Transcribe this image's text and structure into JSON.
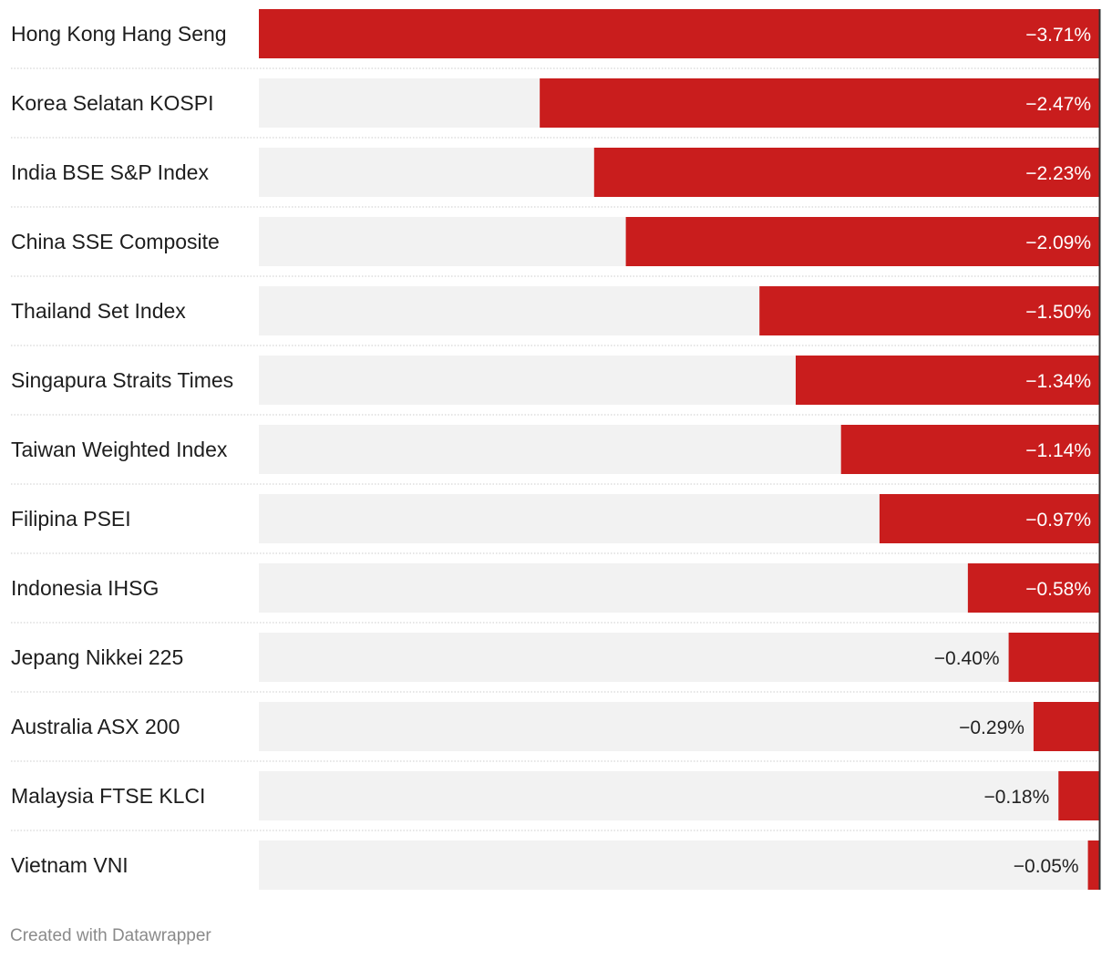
{
  "chart_data": {
    "type": "bar",
    "orientation": "horizontal",
    "categories": [
      "Hong Kong Hang Seng",
      "Korea Selatan KOSPI",
      "India BSE S&P Index",
      "China SSE Composite",
      "Thailand Set Index",
      "Singapura Straits Times",
      "Taiwan Weighted Index",
      "Filipina PSEI",
      "Indonesia IHSG",
      "Jepang Nikkei 225",
      "Australia ASX 200",
      "Malaysia FTSE KLCI",
      "Vietnam VNI"
    ],
    "values": [
      -3.71,
      -2.47,
      -2.23,
      -2.09,
      -1.5,
      -1.34,
      -1.14,
      -0.97,
      -0.58,
      -0.4,
      -0.29,
      -0.18,
      -0.05
    ],
    "value_labels": [
      "−3.71%",
      "−2.47%",
      "−2.23%",
      "−2.09%",
      "−1.50%",
      "−1.34%",
      "−1.14%",
      "−0.97%",
      "−0.58%",
      "−0.40%",
      "−0.29%",
      "−0.18%",
      "−0.05%"
    ],
    "xlim": [
      -3.71,
      0
    ],
    "colors": {
      "bar": "#c91d1d",
      "track": "#f2f2f2",
      "label_inside": "#ffffff",
      "label_outside": "#222222",
      "axis_line": "#333333",
      "separator": "#cccccc"
    }
  },
  "footer": {
    "credit": "Created with Datawrapper"
  }
}
